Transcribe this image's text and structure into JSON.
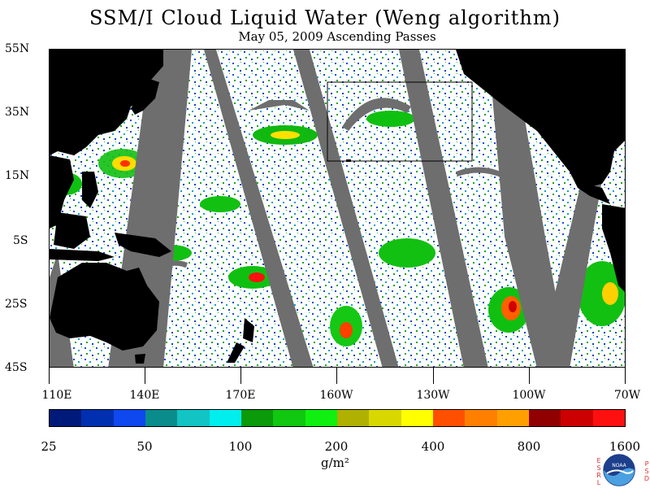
{
  "title": "SSM/I Cloud Liquid Water (Weng algorithm)",
  "subtitle": "May 05, 2009  Ascending Passes",
  "lat_labels": [
    "55N",
    "35N",
    "15N",
    "5S",
    "25S",
    "45S"
  ],
  "lon_labels": [
    "110E",
    "140E",
    "170E",
    "160W",
    "130W",
    "100W",
    "70W"
  ],
  "colorbar": {
    "colors": [
      "#001a7a",
      "#0030b0",
      "#1048f0",
      "#0b8c8c",
      "#13c4c4",
      "#00eeee",
      "#0a9a0a",
      "#10c810",
      "#10f010",
      "#b0b000",
      "#d8d800",
      "#ffff00",
      "#ff5000",
      "#ff8000",
      "#ffa000",
      "#900000",
      "#cc0000",
      "#ff1010"
    ],
    "labels": [
      "25",
      "50",
      "100",
      "200",
      "400",
      "800",
      "1600"
    ]
  },
  "units": "g/m²",
  "logo": {
    "name": "NOAA",
    "left_letters": "ESRL",
    "right_letters": "PSD"
  },
  "colors": {
    "land": "#000000",
    "no_data_swath_gap": "#6e6e6e",
    "clear_ocean": "#ffffff"
  }
}
